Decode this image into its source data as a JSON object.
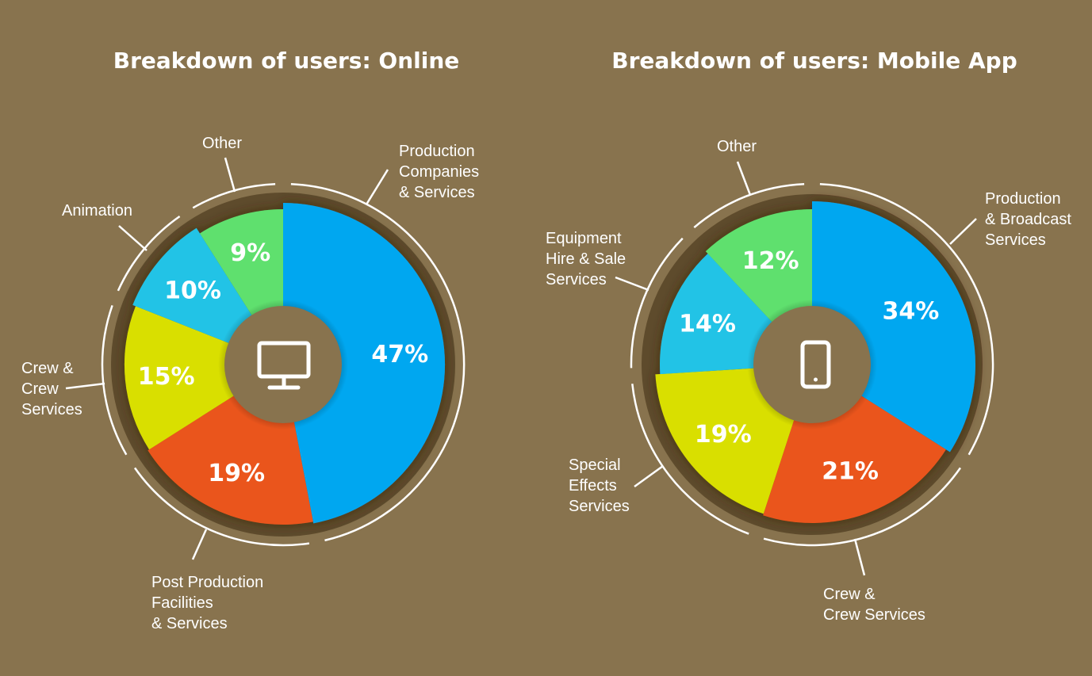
{
  "chart_data": [
    {
      "type": "pie",
      "title": "Breakdown of users: Online",
      "center_icon": "desktop-monitor-icon",
      "slices": [
        {
          "label": "Production Companies & Services",
          "label_lines": [
            "Production",
            "Companies",
            "& Services"
          ],
          "value": 47,
          "value_label": "47%",
          "color": "#06a7f0"
        },
        {
          "label": "Post Production Facilities & Services",
          "label_lines": [
            "Post Production",
            "Facilities",
            "& Services"
          ],
          "value": 19,
          "value_label": "19%",
          "color": "#ea551c"
        },
        {
          "label": "Crew & Crew Services",
          "label_lines": [
            "Crew &",
            "Crew",
            "Services"
          ],
          "value": 15,
          "value_label": "15%",
          "color": "#d9df00"
        },
        {
          "label": "Animation",
          "label_lines": [
            "Animation"
          ],
          "value": 10,
          "value_label": "10%",
          "color": "#22c3e6"
        },
        {
          "label": "Other",
          "label_lines": [
            "Other"
          ],
          "value": 9,
          "value_label": "9%",
          "color": "#5ee06e"
        }
      ]
    },
    {
      "type": "pie",
      "title": "Breakdown of users: Mobile App",
      "center_icon": "mobile-phone-icon",
      "slices": [
        {
          "label": "Production & Broadcast Services",
          "label_lines": [
            "Production",
            "& Broadcast",
            "Services"
          ],
          "value": 34,
          "value_label": "34%",
          "color": "#06a7f0"
        },
        {
          "label": "Crew & Crew Services",
          "label_lines": [
            "Crew &",
            "Crew Services"
          ],
          "value": 21,
          "value_label": "21%",
          "color": "#ea551c"
        },
        {
          "label": "Special Effects Services",
          "label_lines": [
            "Special",
            "Effects",
            "Services"
          ],
          "value": 19,
          "value_label": "19%",
          "color": "#d9df00"
        },
        {
          "label": "Equipment Hire & Sale Services",
          "label_lines": [
            "Equipment",
            "Hire & Sale",
            "Services"
          ],
          "value": 14,
          "value_label": "14%",
          "color": "#22c3e6"
        },
        {
          "label": "Other",
          "label_lines": [
            "Other"
          ],
          "value": 12,
          "value_label": "12%",
          "color": "#5ee06e"
        }
      ]
    }
  ]
}
